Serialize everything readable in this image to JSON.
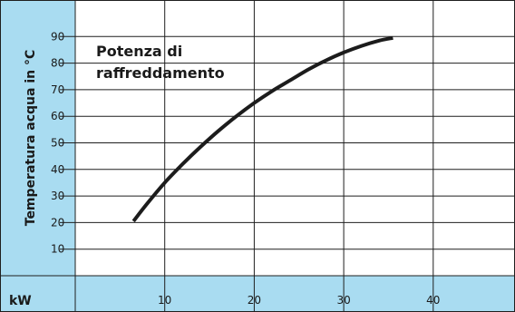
{
  "chart_data": {
    "type": "line",
    "title_lines": [
      "Potenza di",
      "raffreddamento"
    ],
    "xlabel": "kW",
    "ylabel": "Temperatura acqua in °C",
    "x_ticks": [
      10,
      20,
      30,
      40
    ],
    "y_ticks": [
      10,
      20,
      30,
      40,
      50,
      60,
      70,
      80,
      90
    ],
    "xlim": [
      0,
      50
    ],
    "ylim": [
      0,
      100
    ],
    "grid": true,
    "series": [
      {
        "x": [
          6.5,
          8,
          10,
          12,
          14,
          16,
          18,
          20,
          22,
          24,
          26,
          28,
          30,
          32,
          34,
          35.5
        ],
        "y": [
          20.5,
          27,
          35,
          42,
          48.5,
          54.5,
          60,
          65,
          69.5,
          73.5,
          77.5,
          81,
          84,
          86.5,
          88.5,
          89.5
        ]
      }
    ],
    "colors": {
      "background": "#ffffff",
      "panel": "#a9dcf1",
      "grid": "#1f1f1f",
      "line": "#1c1c1c"
    }
  }
}
